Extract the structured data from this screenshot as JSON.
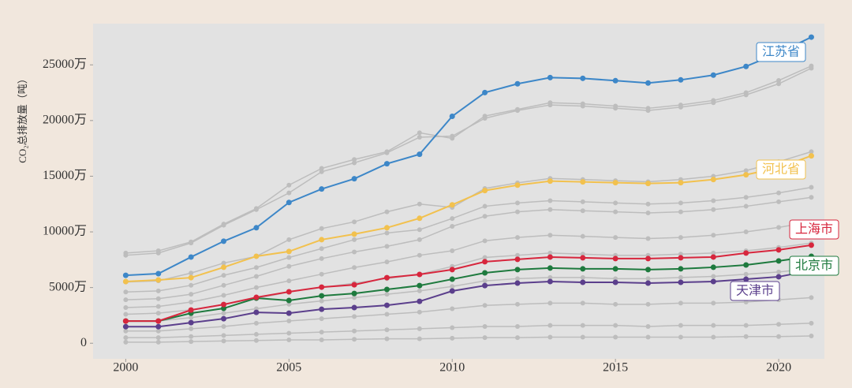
{
  "chart_data": {
    "type": "line",
    "y_label": "CO₂总排放量（吨）",
    "x": [
      2000,
      2001,
      2002,
      2003,
      2004,
      2005,
      2006,
      2007,
      2008,
      2009,
      2010,
      2011,
      2012,
      2013,
      2014,
      2015,
      2016,
      2017,
      2018,
      2019,
      2020,
      2021
    ],
    "xlim": [
      1999,
      2021.4
    ],
    "xticks": [
      2000,
      2005,
      2010,
      2015,
      2020
    ],
    "ylim": [
      -1400,
      28700
    ],
    "yticks": [
      0,
      {
        "value": 5000,
        "label": "5000万"
      },
      {
        "value": 10000,
        "label": "10000万"
      },
      {
        "value": 15000,
        "label": "15000万"
      },
      {
        "value": 20000,
        "label": "20000万"
      },
      {
        "value": 25000,
        "label": "25000万"
      }
    ],
    "series": [
      {
        "color": "#bdbdbd",
        "values": [
          8100,
          8300,
          9100,
          10700,
          12100,
          14200,
          15700,
          16500,
          17200,
          18900,
          18400,
          20400,
          21000,
          21600,
          21500,
          21300,
          21100,
          21400,
          21800,
          22500,
          23600,
          24900
        ]
      },
      {
        "color": "#bdbdbd",
        "values": [
          7900,
          8100,
          9000,
          10600,
          12000,
          13500,
          15400,
          16200,
          17100,
          18500,
          18600,
          20200,
          20900,
          21400,
          21300,
          21100,
          20900,
          21200,
          21600,
          22300,
          23300,
          24700
        ]
      },
      {
        "color": "#bdbdbd",
        "values": [
          5500,
          5600,
          6300,
          7200,
          7800,
          9300,
          10300,
          10900,
          11800,
          12500,
          12200,
          13900,
          14400,
          14800,
          14700,
          14600,
          14500,
          14700,
          15000,
          15500,
          16300,
          17200
        ]
      },
      {
        "color": "#bdbdbd",
        "values": [
          4600,
          4700,
          5200,
          6100,
          6800,
          7700,
          8500,
          9300,
          9900,
          10200,
          11200,
          12300,
          12600,
          12800,
          12700,
          12600,
          12500,
          12600,
          12800,
          13100,
          13500,
          14000
        ]
      },
      {
        "color": "#bdbdbd",
        "values": [
          3900,
          4000,
          4400,
          5200,
          6000,
          6900,
          7600,
          8200,
          8700,
          9300,
          10500,
          11400,
          11800,
          12000,
          11900,
          11800,
          11700,
          11800,
          12000,
          12300,
          12700,
          13100
        ]
      },
      {
        "color": "#bdbdbd",
        "values": [
          3200,
          3300,
          3700,
          4300,
          5000,
          5600,
          6200,
          6800,
          7300,
          7900,
          8300,
          9200,
          9500,
          9700,
          9600,
          9500,
          9400,
          9500,
          9700,
          10000,
          10400,
          10900
        ]
      },
      {
        "color": "#bdbdbd",
        "values": [
          2600,
          2700,
          3000,
          3500,
          4000,
          4600,
          5000,
          5400,
          5800,
          6200,
          6900,
          7700,
          7900,
          8100,
          8000,
          7900,
          7900,
          8000,
          8100,
          8300,
          8600,
          9000
        ]
      },
      {
        "color": "#bdbdbd",
        "values": [
          2000,
          2000,
          2300,
          2700,
          3100,
          3500,
          3800,
          4100,
          4400,
          4700,
          5100,
          5600,
          5800,
          5900,
          5900,
          5800,
          5800,
          5900,
          6000,
          6200,
          6400,
          6700
        ]
      },
      {
        "color": "#bdbdbd",
        "values": [
          1100,
          1100,
          1300,
          1500,
          1800,
          2000,
          2200,
          2400,
          2600,
          2800,
          3100,
          3400,
          3500,
          3600,
          3600,
          3500,
          3500,
          3600,
          3600,
          3700,
          3900,
          4100
        ]
      },
      {
        "color": "#bdbdbd",
        "values": [
          500,
          500,
          600,
          700,
          800,
          900,
          1000,
          1100,
          1200,
          1300,
          1400,
          1500,
          1500,
          1600,
          1600,
          1600,
          1500,
          1600,
          1600,
          1600,
          1700,
          1800
        ]
      },
      {
        "color": "#bdbdbd",
        "values": [
          100,
          100,
          150,
          200,
          250,
          300,
          300,
          350,
          400,
          400,
          450,
          500,
          500,
          550,
          550,
          550,
          550,
          550,
          550,
          600,
          600,
          650
        ]
      },
      {
        "name": "天津市",
        "color": "#5b3f8c",
        "values": [
          1490,
          1490,
          1850,
          2200,
          2770,
          2700,
          3050,
          3200,
          3410,
          3760,
          4690,
          5180,
          5400,
          5540,
          5470,
          5470,
          5400,
          5470,
          5540,
          5750,
          5970,
          6530
        ]
      },
      {
        "name": "北京市",
        "color": "#1e7a3e",
        "values": [
          1990,
          1990,
          2700,
          3130,
          4050,
          3840,
          4260,
          4470,
          4830,
          5180,
          5750,
          6320,
          6610,
          6750,
          6680,
          6680,
          6610,
          6680,
          6820,
          7030,
          7390,
          7810
        ]
      },
      {
        "name": "上海市",
        "color": "#d7263d",
        "values": [
          1990,
          1990,
          2980,
          3480,
          4120,
          4620,
          5040,
          5250,
          5890,
          6180,
          6610,
          7320,
          7530,
          7740,
          7670,
          7600,
          7600,
          7670,
          7740,
          8100,
          8380,
          8810
        ]
      },
      {
        "name": "河北省",
        "color": "#f2c14e",
        "values": [
          5540,
          5680,
          5890,
          6820,
          7810,
          8240,
          9300,
          9800,
          10370,
          11220,
          12430,
          13710,
          14200,
          14560,
          14490,
          14420,
          14350,
          14420,
          14700,
          15130,
          15770,
          16830
        ]
      },
      {
        "name": "江苏省",
        "color": "#3d87c8",
        "values": [
          6100,
          6250,
          7740,
          9160,
          10370,
          12640,
          13850,
          14770,
          16120,
          16970,
          20380,
          22510,
          23300,
          23860,
          23790,
          23580,
          23370,
          23650,
          24080,
          24860,
          26070,
          27490
        ]
      }
    ]
  }
}
